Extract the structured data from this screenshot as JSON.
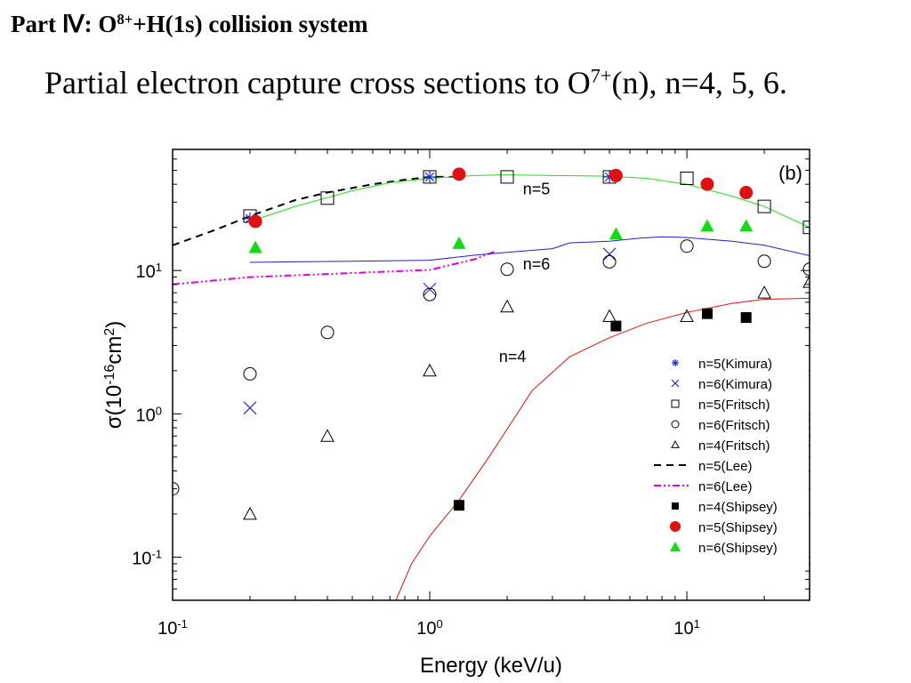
{
  "slide": {
    "part_title": {
      "prefix": "Part Ⅳ: O",
      "sup1": "8+",
      "suffix": "+H(1s) collision system"
    },
    "subtitle": {
      "prefix": "Partial electron capture cross sections to O",
      "sup": "7+",
      "suffix": "(n), n=4, 5, 6."
    }
  },
  "chart_data": {
    "type": "scatter",
    "panel_label": "(b)",
    "xlabel": "Energy (keV/u)",
    "ylabel": {
      "symbol": "σ",
      "open": "(10",
      "exp": "-16",
      "mid": "cm",
      "exp2": "2",
      "close": ")"
    },
    "xscale": "log",
    "yscale": "log",
    "xlim": [
      0.1,
      30
    ],
    "ylim": [
      0.05,
      70
    ],
    "xticks": [
      {
        "value": 0.1,
        "base": "10",
        "exp": "-1"
      },
      {
        "value": 1,
        "base": "10",
        "exp": "0"
      },
      {
        "value": 10,
        "base": "10",
        "exp": "1"
      }
    ],
    "yticks": [
      {
        "value": 0.1,
        "base": "10",
        "exp": "-1"
      },
      {
        "value": 1,
        "base": "10",
        "exp": "0"
      },
      {
        "value": 10,
        "base": "10",
        "exp": "1"
      }
    ],
    "annotations": [
      {
        "text": "n=5",
        "x": 2.6,
        "y": 34
      },
      {
        "text": "n=6",
        "x": 2.6,
        "y": 10.2
      },
      {
        "text": "n=4",
        "x": 2.1,
        "y": 2.3
      }
    ],
    "legend_position": "bottom-right",
    "series": [
      {
        "name": "n=5(Kimura)",
        "marker": "asterisk",
        "color": "#2b2bc8",
        "x": [
          0.2,
          1.0,
          5.0
        ],
        "y": [
          23,
          45,
          45
        ]
      },
      {
        "name": "n=6(Kimura)",
        "marker": "cross",
        "color": "#2b2bc8",
        "x": [
          0.2,
          1.0,
          5.0
        ],
        "y": [
          1.1,
          7.4,
          13
        ]
      },
      {
        "name": "n=5(Fritsch)",
        "marker": "open-square",
        "color": "#000000",
        "x": [
          0.2,
          0.4,
          1.0,
          2.0,
          5.0,
          10.0,
          20.0,
          30.0
        ],
        "y": [
          24,
          32,
          45,
          45,
          45,
          44,
          28,
          20
        ]
      },
      {
        "name": "n=6(Fritsch)",
        "marker": "open-circle",
        "color": "#000000",
        "x": [
          0.1,
          0.2,
          0.4,
          1.0,
          2.0,
          5.0,
          10.0,
          20.0,
          30.0
        ],
        "y": [
          0.3,
          1.9,
          3.7,
          6.8,
          10.2,
          11.5,
          14.8,
          11.6,
          10.2
        ]
      },
      {
        "name": "n=4(Fritsch)",
        "marker": "open-triangle",
        "color": "#000000",
        "x": [
          0.2,
          0.4,
          1.0,
          2.0,
          5.0,
          10.0,
          20.0,
          30.0
        ],
        "y": [
          0.2,
          0.7,
          2.0,
          5.6,
          4.8,
          4.8,
          7.0,
          8.3
        ]
      },
      {
        "name": "n=5(Lee)",
        "line": "dashed",
        "color": "#000000",
        "x": [
          0.1,
          0.15,
          0.2,
          0.3,
          0.4,
          0.6,
          0.8,
          1.0,
          1.3
        ],
        "y": [
          15,
          19.5,
          24,
          31,
          35,
          40,
          43,
          45,
          45
        ]
      },
      {
        "name": "n=6(Lee)",
        "line": "dashdot",
        "color": "#e000e0",
        "x": [
          0.1,
          0.2,
          0.5,
          1.0,
          1.5,
          1.8
        ],
        "y": [
          8,
          9,
          9.6,
          10.1,
          12,
          13.6
        ]
      },
      {
        "name": "n=4(Shipsey)",
        "marker": "filled-square",
        "color": "#000000",
        "x": [
          1.3,
          5.3,
          12.0,
          17.0
        ],
        "y": [
          0.23,
          4.1,
          5.0,
          4.7
        ]
      },
      {
        "name": "n=5(Shipsey)",
        "marker": "filled-circle",
        "color": "#e01010",
        "x": [
          0.21,
          1.3,
          5.3,
          12.0,
          17.0
        ],
        "y": [
          22,
          47,
          46,
          40,
          35
        ]
      },
      {
        "name": "n=6(Shipsey)",
        "marker": "filled-triangle",
        "color": "#10dc10",
        "x": [
          0.21,
          1.3,
          5.3,
          12.0,
          17.0
        ],
        "y": [
          14.5,
          15.5,
          18,
          20.5,
          20.5
        ]
      },
      {
        "marker": "none",
        "line": "solid",
        "color": "#20dc20",
        "x": [
          0.2,
          0.3,
          0.5,
          0.7,
          1.0,
          1.5,
          2.0,
          3.0,
          5.0,
          7.0,
          10.0,
          15.0,
          20.0,
          30.0
        ],
        "y": [
          22,
          28,
          36,
          41,
          44,
          46,
          46.5,
          46,
          45.5,
          44,
          40,
          33,
          28,
          20
        ]
      },
      {
        "marker": "none",
        "line": "solid",
        "color": "#2020c8",
        "x": [
          0.2,
          0.3,
          0.5,
          0.7,
          1.0,
          1.5,
          2.0,
          3.0,
          3.5,
          5.0,
          6.5,
          8.0,
          10.0,
          15.0,
          20.0,
          30.0
        ],
        "y": [
          11.4,
          11.5,
          11.6,
          11.7,
          11.8,
          12.8,
          13.4,
          14.2,
          15.6,
          16,
          16.8,
          17.2,
          17,
          16,
          15,
          12.7
        ]
      },
      {
        "marker": "none",
        "line": "solid",
        "color": "#e01010",
        "x": [
          0.7,
          0.85,
          1.0,
          1.3,
          1.7,
          2.5,
          3.5,
          5.0,
          7.0,
          10.0,
          15.0,
          20.0,
          30.0
        ],
        "y": [
          0.04,
          0.09,
          0.14,
          0.25,
          0.5,
          1.45,
          2.5,
          3.4,
          4.3,
          5.1,
          5.9,
          6.3,
          6.4
        ]
      }
    ]
  }
}
